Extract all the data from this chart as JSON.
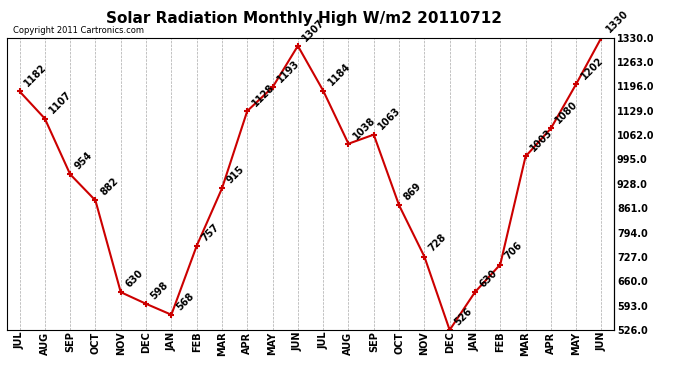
{
  "title": "Solar Radiation Monthly High W/m2 20110712",
  "copyright": "Copyright 2011 Cartronics.com",
  "months": [
    "JUL",
    "AUG",
    "SEP",
    "OCT",
    "NOV",
    "DEC",
    "JAN",
    "FEB",
    "MAR",
    "APR",
    "MAY",
    "JUN",
    "JUL",
    "AUG",
    "SEP",
    "OCT",
    "NOV",
    "DEC",
    "JAN",
    "FEB",
    "MAR",
    "APR",
    "MAY",
    "JUN"
  ],
  "values": [
    1182,
    1107,
    954,
    882,
    630,
    598,
    568,
    757,
    915,
    1128,
    1193,
    1307,
    1184,
    1038,
    1063,
    869,
    728,
    526,
    630,
    706,
    1003,
    1080,
    1202,
    1330
  ],
  "line_color": "#cc0000",
  "marker": "+",
  "marker_color": "#cc0000",
  "background_color": "#ffffff",
  "grid_color": "#aaaaaa",
  "ylim": [
    526.0,
    1330.0
  ],
  "yticks": [
    526.0,
    593.0,
    660.0,
    727.0,
    794.0,
    861.0,
    928.0,
    995.0,
    1062.0,
    1129.0,
    1196.0,
    1263.0,
    1330.0
  ],
  "title_fontsize": 11,
  "label_fontsize": 7,
  "annotation_fontsize": 7,
  "copyright_fontsize": 6
}
